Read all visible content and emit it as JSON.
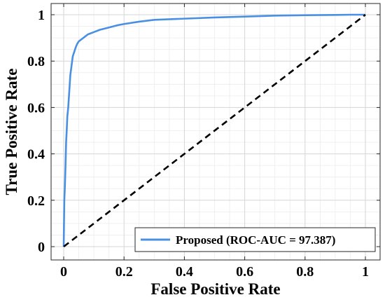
{
  "chart_data": {
    "type": "line",
    "title": "",
    "xlabel": "False Positive Rate",
    "ylabel": "True Positive Rate",
    "xlim": [
      0,
      1
    ],
    "ylim": [
      0,
      1
    ],
    "xticks": [
      0,
      0.2,
      0.4,
      0.6,
      0.8,
      1
    ],
    "xtick_labels": [
      "0",
      "0.2",
      "0.4",
      "0.6",
      "0.8",
      "1"
    ],
    "yticks": [
      0,
      0.2,
      0.4,
      0.6,
      0.8,
      1
    ],
    "ytick_labels": [
      "0",
      "0.2",
      "0.4",
      "0.6",
      "0.8",
      "1"
    ],
    "grid": true,
    "minor_grid": true,
    "legend_position": "bottom-right",
    "series": [
      {
        "name": "Proposed (ROC-AUC = 97.387)",
        "color": "#4a90e2",
        "style": "solid",
        "x": [
          0,
          0.002,
          0.004,
          0.006,
          0.008,
          0.01,
          0.012,
          0.015,
          0.018,
          0.02,
          0.022,
          0.025,
          0.028,
          0.03,
          0.035,
          0.04,
          0.045,
          0.05,
          0.06,
          0.07,
          0.08,
          0.1,
          0.12,
          0.15,
          0.18,
          0.2,
          0.25,
          0.3,
          0.4,
          0.5,
          0.6,
          0.7,
          0.8,
          0.9,
          0.95,
          1.0
        ],
        "y": [
          0,
          0.2,
          0.26,
          0.35,
          0.45,
          0.5,
          0.56,
          0.6,
          0.66,
          0.7,
          0.74,
          0.77,
          0.8,
          0.82,
          0.84,
          0.86,
          0.875,
          0.885,
          0.895,
          0.905,
          0.915,
          0.925,
          0.935,
          0.945,
          0.955,
          0.96,
          0.97,
          0.978,
          0.983,
          0.988,
          0.992,
          0.996,
          0.998,
          0.999,
          1.0,
          1.0
        ]
      },
      {
        "name": "",
        "color": "#000000",
        "style": "dashed",
        "x": [
          0,
          1
        ],
        "y": [
          0,
          1
        ]
      }
    ]
  }
}
